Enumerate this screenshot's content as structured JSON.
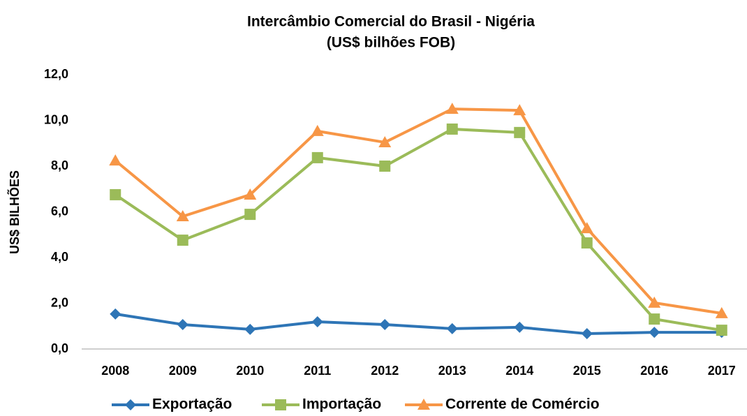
{
  "chart_data": {
    "type": "line",
    "title": "Intercâmbio Comercial do Brasil - Nigéria",
    "subtitle": "(US$ bilhões FOB)",
    "y_label": "US$ BILHÕES",
    "categories": [
      "2008",
      "2009",
      "2010",
      "2011",
      "2012",
      "2013",
      "2014",
      "2015",
      "2016",
      "2017"
    ],
    "series": [
      {
        "name": "Exportação",
        "color": "#2e75b6",
        "marker": "diamond",
        "values": [
          1.53,
          1.07,
          0.86,
          1.19,
          1.07,
          0.89,
          0.95,
          0.67,
          0.73,
          0.73
        ]
      },
      {
        "name": "Importação",
        "color": "#9bbb59",
        "marker": "square",
        "values": [
          6.75,
          4.76,
          5.89,
          8.37,
          8.0,
          9.62,
          9.47,
          4.64,
          1.31,
          0.82
        ]
      },
      {
        "name": "Corrente de Comércio",
        "color": "#f79646",
        "marker": "triangle",
        "values": [
          8.24,
          5.8,
          6.75,
          9.53,
          9.04,
          10.5,
          10.44,
          5.28,
          2.02,
          1.56
        ]
      }
    ],
    "ylim": [
      0,
      12
    ],
    "yticks": [
      {
        "value": 0,
        "label": "0,0"
      },
      {
        "value": 2,
        "label": "2,0"
      },
      {
        "value": 4,
        "label": "4,0"
      },
      {
        "value": 6,
        "label": "6,0"
      },
      {
        "value": 8,
        "label": "8,0"
      },
      {
        "value": 10,
        "label": "10,0"
      },
      {
        "value": 12,
        "label": "12,0"
      }
    ],
    "grid": false,
    "legend": "bottom"
  }
}
